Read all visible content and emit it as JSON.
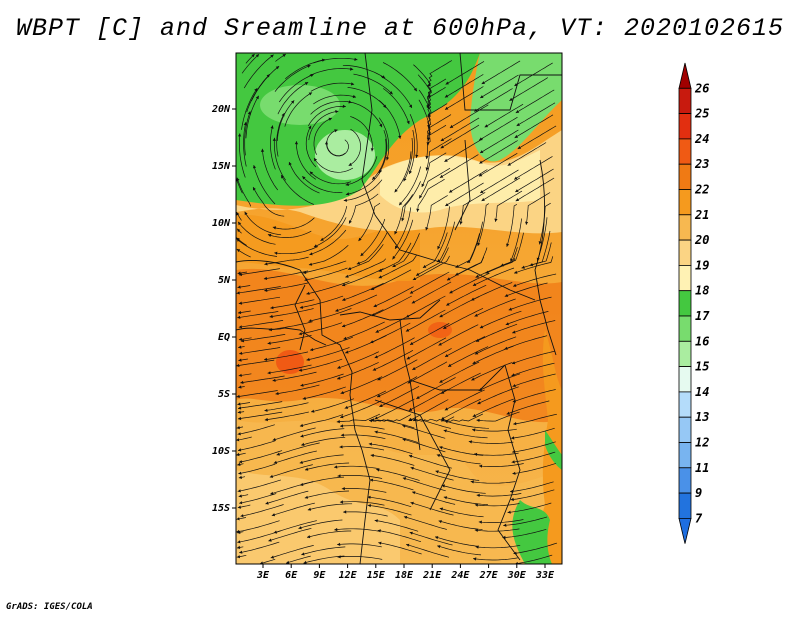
{
  "title": "WBPT [C] and Sreamline at 600hPa, VT: 2020102615",
  "credit": "GrADS: IGES/COLA",
  "map": {
    "lat_ticks": [
      {
        "value": 20,
        "label": "20N"
      },
      {
        "value": 15,
        "label": "15N"
      },
      {
        "value": 10,
        "label": "10N"
      },
      {
        "value": 5,
        "label": "5N"
      },
      {
        "value": 0,
        "label": "EQ"
      },
      {
        "value": -5,
        "label": "5S"
      },
      {
        "value": -10,
        "label": "10S"
      },
      {
        "value": -15,
        "label": "15S"
      }
    ],
    "lon_ticks": [
      {
        "value": 3,
        "label": "3E"
      },
      {
        "value": 6,
        "label": "6E"
      },
      {
        "value": 9,
        "label": "9E"
      },
      {
        "value": 12,
        "label": "12E"
      },
      {
        "value": 15,
        "label": "15E"
      },
      {
        "value": 18,
        "label": "18E"
      },
      {
        "value": 21,
        "label": "21E"
      },
      {
        "value": 24,
        "label": "24E"
      },
      {
        "value": 27,
        "label": "27E"
      },
      {
        "value": 30,
        "label": "30E"
      },
      {
        "value": 33,
        "label": "33E"
      }
    ]
  },
  "colorbar": {
    "levels": [
      {
        "label": "26",
        "color": "#a00000"
      },
      {
        "label": "25",
        "color": "#c81a0e"
      },
      {
        "label": "24",
        "color": "#e22f10"
      },
      {
        "label": "23",
        "color": "#f05a14"
      },
      {
        "label": "22",
        "color": "#f07a14"
      },
      {
        "label": "21",
        "color": "#f59a1e"
      },
      {
        "label": "20",
        "color": "#f7b850"
      },
      {
        "label": "19",
        "color": "#fbd484"
      },
      {
        "label": "18",
        "color": "#fff2b4"
      },
      {
        "label": "17",
        "color": "#44c840"
      },
      {
        "label": "16",
        "color": "#78dc6e"
      },
      {
        "label": "15",
        "color": "#aaeda0"
      },
      {
        "label": "14",
        "color": "#e6faf0"
      },
      {
        "label": "13",
        "color": "#b4dcfa"
      },
      {
        "label": "12",
        "color": "#96c8f5"
      },
      {
        "label": "11",
        "color": "#78b4f0"
      },
      {
        "label": "9",
        "color": "#4a91e8"
      },
      {
        "label": "7",
        "color": "#2273de"
      }
    ],
    "bottom_color": "#1e6ee0"
  }
}
